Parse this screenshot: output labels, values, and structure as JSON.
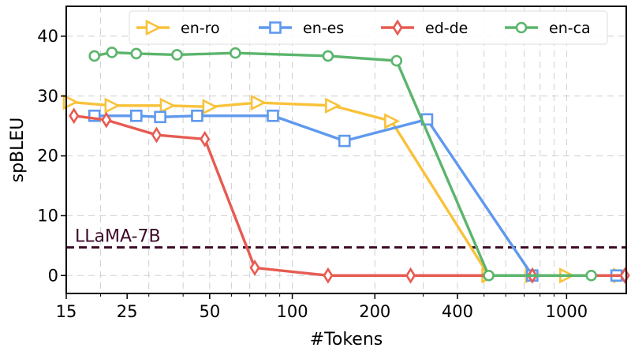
{
  "chart_data": {
    "type": "line",
    "xlabel": "#Tokens",
    "ylabel": "spBLEU",
    "xscale": "log",
    "xlim": [
      15,
      1650
    ],
    "ylim": [
      -3,
      45
    ],
    "xticks": [
      15,
      25,
      50,
      100,
      200,
      400,
      1000
    ],
    "xtick_labels": [
      "15",
      "25",
      "50",
      "100",
      "200",
      "400",
      "1000"
    ],
    "yticks": [
      0,
      10,
      20,
      30,
      40
    ],
    "ytick_labels": [
      "0",
      "10",
      "20",
      "30",
      "40"
    ],
    "grid": true,
    "legend_position": "top",
    "series": [
      {
        "name": "en-ro",
        "color": "#f8c23a",
        "marker": "triangle-right",
        "x": [
          15.5,
          22,
          35,
          50,
          75,
          140,
          230,
          520,
          750,
          1000,
          1570
        ],
        "y": [
          29.0,
          28.4,
          28.4,
          28.2,
          28.9,
          28.4,
          25.8,
          0,
          0,
          0,
          0
        ]
      },
      {
        "name": "en-es",
        "color": "#5f99ee",
        "marker": "square",
        "x": [
          19,
          27,
          33,
          45,
          85,
          155,
          310,
          750,
          1520
        ],
        "y": [
          26.7,
          26.7,
          26.5,
          26.7,
          26.7,
          22.5,
          26.1,
          0,
          0
        ]
      },
      {
        "name": "ed-de",
        "color": "#e65b52",
        "marker": "thin-diamond",
        "x": [
          16,
          21,
          32,
          48,
          73,
          135,
          270,
          750,
          1630
        ],
        "y": [
          26.7,
          26.0,
          23.5,
          22.8,
          1.3,
          0,
          0,
          0,
          0
        ]
      },
      {
        "name": "en-ca",
        "color": "#5bb56c",
        "marker": "circle",
        "x": [
          19,
          22,
          27,
          38,
          62,
          135,
          240,
          520,
          1230
        ],
        "y": [
          36.7,
          37.3,
          37.1,
          36.9,
          37.2,
          36.7,
          35.9,
          0,
          0
        ]
      }
    ],
    "reference_line": {
      "label": "LLaMA-7B",
      "y": 4.7,
      "color": "#3d0a28"
    }
  }
}
